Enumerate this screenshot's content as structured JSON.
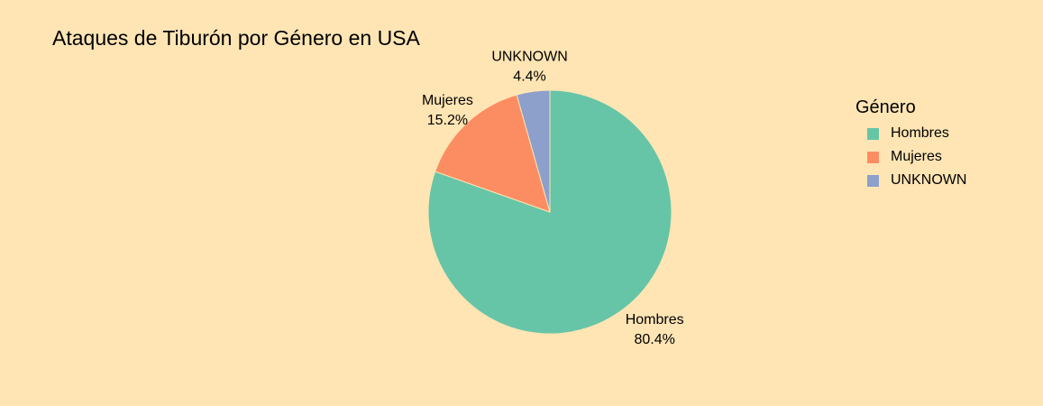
{
  "chart_data": {
    "type": "pie",
    "title": "Ataques de Tiburón por Género en USA",
    "legend_title": "Género",
    "legend_placement": "right",
    "slices": [
      {
        "label": "Hombres",
        "value": 80.4,
        "percent_label": "80.4%",
        "color": "#66c5a6"
      },
      {
        "label": "Mujeres",
        "value": 15.2,
        "percent_label": "15.2%",
        "color": "#fc8d62"
      },
      {
        "label": "UNKNOWN",
        "value": 4.4,
        "percent_label": "4.4%",
        "color": "#8da0cb"
      }
    ]
  },
  "colors": {
    "background": "#ffe5b4",
    "slice_border": "#ffe5b4"
  }
}
